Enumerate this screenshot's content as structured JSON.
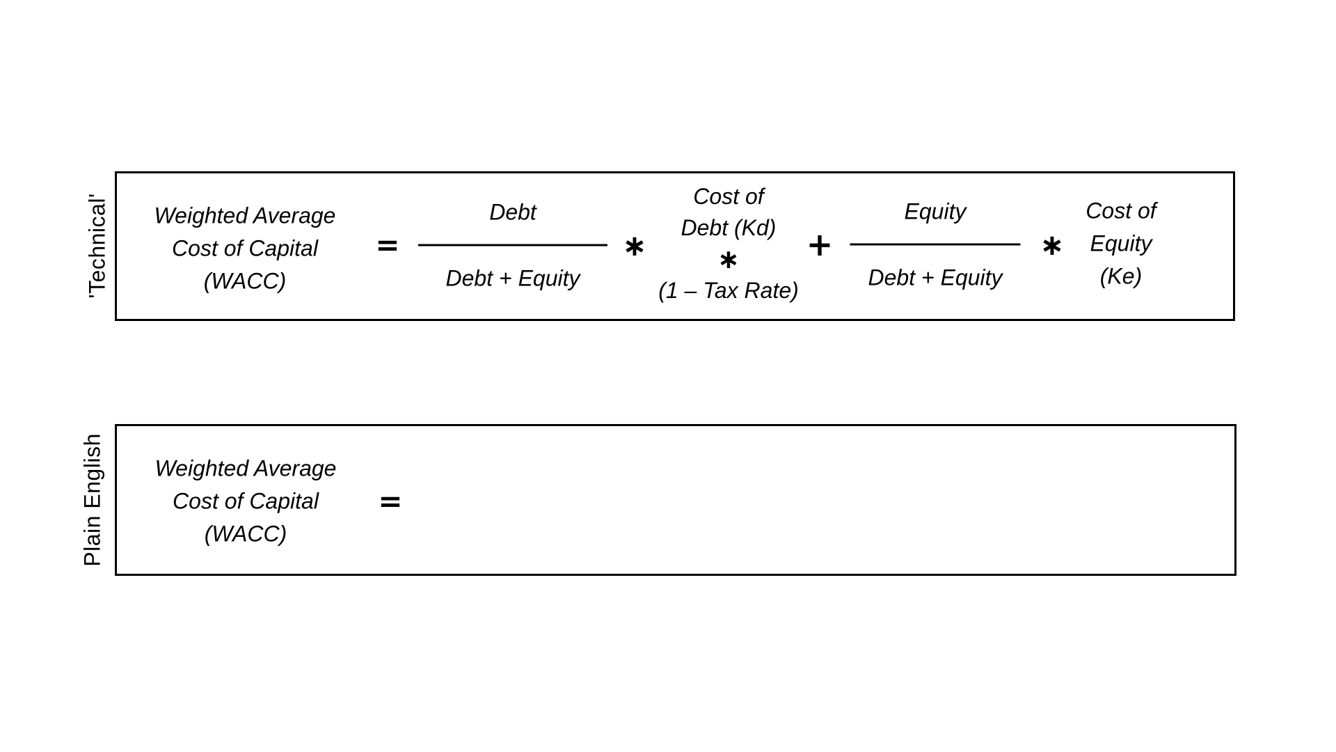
{
  "colors": {
    "background": "#ffffff",
    "text": "#000000",
    "border": "#000000"
  },
  "technical": {
    "side_label": "'Technical'",
    "wacc": {
      "line1": "Weighted Average",
      "line2": "Cost of Capital",
      "line3": "(WACC)"
    },
    "equals": "=",
    "debt_fraction": {
      "numerator": "Debt",
      "denominator": "Debt + Equity"
    },
    "multiply1": "∗",
    "cost_of_debt": {
      "line1": "Cost of",
      "line2": "Debt (Kd)",
      "multiply": "∗",
      "line3": "(1 – Tax Rate)"
    },
    "plus": "+",
    "equity_fraction": {
      "numerator": "Equity",
      "denominator": "Debt + Equity"
    },
    "multiply2": "∗",
    "cost_of_equity": {
      "line1": "Cost of",
      "line2": "Equity",
      "line3": "(Ke)"
    }
  },
  "plain_english": {
    "side_label": "Plain English",
    "wacc": {
      "line1": "Weighted Average",
      "line2": "Cost of Capital",
      "line3": "(WACC)"
    },
    "equals": "="
  }
}
